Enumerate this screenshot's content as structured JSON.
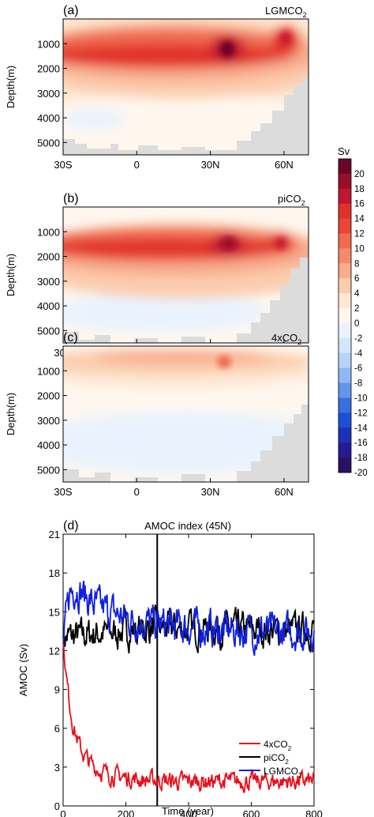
{
  "chart_data": [
    {
      "type": "heatmap",
      "panel_label": "(a)",
      "title_main": "LGMCO",
      "title_sub": "2",
      "ylabel": "Depth(m)",
      "xlim": [
        -30,
        70
      ],
      "ylim": [
        0,
        5500
      ],
      "xticks": [
        "30S",
        "0",
        "30N",
        "60N"
      ],
      "yticks": [
        "1000",
        "2000",
        "3000",
        "4000",
        "5000"
      ],
      "cell_upper_max_sv": 20,
      "cell_upper_core_depth_m": 1400,
      "cell_upper_core_lat": 35
    },
    {
      "type": "heatmap",
      "panel_label": "(b)",
      "title_main": "piCO",
      "title_sub": "2",
      "ylabel": "Depth(m)",
      "xlim": [
        -30,
        70
      ],
      "ylim": [
        0,
        5500
      ],
      "xticks": [
        "30S",
        "0",
        "30N",
        "60N"
      ],
      "yticks": [
        "1000",
        "2000",
        "3000",
        "4000",
        "5000"
      ],
      "cell_upper_max_sv": 18,
      "cell_upper_core_depth_m": 1100,
      "cell_upper_core_lat": 35
    },
    {
      "type": "heatmap",
      "panel_label": "(c)",
      "title_main": "4xCO",
      "title_sub": "2",
      "ylabel": "Depth(m)",
      "xlim": [
        -30,
        70
      ],
      "ylim": [
        0,
        5500
      ],
      "xticks": [
        "30S",
        "0",
        "30N",
        "60N"
      ],
      "yticks": [
        "1000",
        "2000",
        "3000",
        "4000",
        "5000"
      ],
      "cell_upper_max_sv": 7,
      "cell_upper_core_depth_m": 400,
      "cell_upper_core_lat": 33
    },
    {
      "type": "line",
      "panel_label": "(d)",
      "title": "AMOC index (45N)",
      "xlabel": "Time (year)",
      "ylabel": "AMOC (Sv)",
      "xlim": [
        0,
        800
      ],
      "ylim": [
        0,
        21
      ],
      "xticks": [
        "0",
        "200",
        "400",
        "600",
        "800"
      ],
      "yticks": [
        "0",
        "3",
        "6",
        "9",
        "12",
        "15",
        "18",
        "21"
      ],
      "vline_x": 300,
      "series": [
        {
          "name": "4xCO",
          "name_sub": "2",
          "color": "#e8101a",
          "x": [
            0,
            5,
            10,
            20,
            30,
            40,
            50,
            60,
            80,
            100,
            120,
            150,
            200,
            250,
            300,
            350,
            400,
            450,
            500,
            550,
            600,
            650,
            700,
            750,
            800
          ],
          "values": [
            12.5,
            11.5,
            10.0,
            8.0,
            6.5,
            5.5,
            4.8,
            4.2,
            3.5,
            3.0,
            2.7,
            2.4,
            2.2,
            2.0,
            2.0,
            1.9,
            1.9,
            1.9,
            1.9,
            1.9,
            1.9,
            1.9,
            1.9,
            1.9,
            1.9
          ]
        },
        {
          "name": "piCO",
          "name_sub": "2",
          "color": "#000000",
          "x": [
            0,
            100,
            200,
            300,
            400,
            500,
            600,
            700,
            800
          ],
          "values": [
            13.0,
            13.3,
            13.5,
            13.8,
            13.7,
            13.7,
            13.6,
            13.5,
            13.7
          ]
        },
        {
          "name": "LGMCO",
          "name_sub": "2",
          "color": "#1020e0",
          "x": [
            0,
            10,
            20,
            40,
            60,
            80,
            100,
            150,
            200,
            300,
            400,
            500,
            600,
            700,
            800
          ],
          "values": [
            12.0,
            14.5,
            16.5,
            17.0,
            16.5,
            16.0,
            15.5,
            15.0,
            14.5,
            14.0,
            13.8,
            13.6,
            13.5,
            13.4,
            13.5
          ]
        }
      ]
    }
  ],
  "colorbar": {
    "unit": "Sv",
    "labels": [
      "20",
      "18",
      "16",
      "14",
      "12",
      "10",
      "8",
      "6",
      "4",
      "2",
      "0",
      "-2",
      "-4",
      "-6",
      "-8",
      "-10",
      "-12",
      "-14",
      "-16",
      "-18",
      "-20"
    ],
    "colors": [
      "#6b0626",
      "#9a0d2b",
      "#c21530",
      "#e1312b",
      "#ea4537",
      "#f06a50",
      "#f48a6c",
      "#f8ac8e",
      "#fbcdae",
      "#fde8d2",
      "#fff7ee",
      "#eaf3fd",
      "#d4e6fb",
      "#b6d3f8",
      "#8fb7f2",
      "#6395ea",
      "#3a6fe1",
      "#1f4fd6",
      "#1d30b8",
      "#251c92",
      "#2a1064"
    ]
  }
}
